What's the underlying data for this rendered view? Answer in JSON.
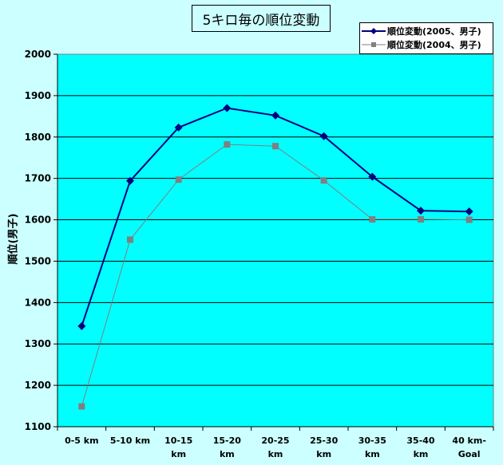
{
  "chart_data": {
    "type": "line",
    "title": "5キロ毎の順位変動",
    "xlabel": "",
    "ylabel": "順位(男子)",
    "ylim": [
      1100,
      2000
    ],
    "yticks": [
      1100,
      1200,
      1300,
      1400,
      1500,
      1600,
      1700,
      1800,
      1900,
      2000
    ],
    "grid": true,
    "legend_position": "top-right",
    "categories": [
      "0-5 km",
      "5-10 km",
      "10-15 km",
      "15-20 km",
      "20-25 km",
      "25-30 km",
      "30-35 km",
      "35-40 km",
      "40 km-Goal"
    ],
    "category_lines": [
      [
        "0-5 km"
      ],
      [
        "5-10 km"
      ],
      [
        "10-15",
        "km"
      ],
      [
        "15-20",
        "km"
      ],
      [
        "20-25",
        "km"
      ],
      [
        "25-30",
        "km"
      ],
      [
        "30-35",
        "km"
      ],
      [
        "35-40",
        "km"
      ],
      [
        "40 km-",
        "Goal"
      ]
    ],
    "series": [
      {
        "name": "順位変動(2005、男子)",
        "color": "#000080",
        "marker": "diamond",
        "values": [
          1343,
          1694,
          1823,
          1870,
          1852,
          1802,
          1704,
          1622,
          1620
        ]
      },
      {
        "name": "順位変動(2004、男子)",
        "color": "#808080",
        "marker": "square",
        "values": [
          1149,
          1552,
          1697,
          1782,
          1778,
          1695,
          1601,
          1601,
          1600
        ]
      }
    ],
    "colors": {
      "background": "#ccffff",
      "plot_area": "#00ffff",
      "gridline": "#000000"
    }
  }
}
